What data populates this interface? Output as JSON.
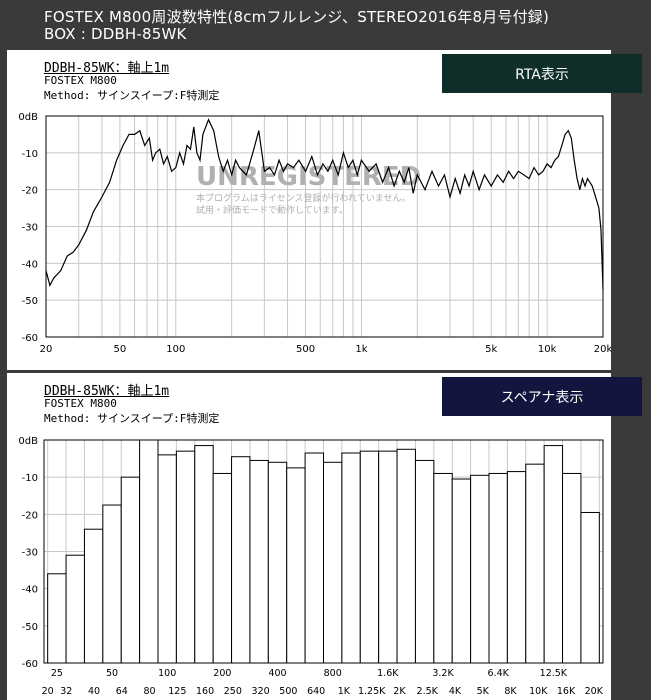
{
  "header": {
    "title": "FOSTEX M800周波数特性(8cmフルレンジ、STEREO2016年8月号付録)",
    "subtitle": "BOX : DDBH-85WK"
  },
  "watermark": {
    "title": "UNREGISTERED",
    "line1": "本プログラムはライセンス登録が行われていません。",
    "line2": "試用・評価モードで動作しています。"
  },
  "panel1": {
    "title": "DDBH-85WK：軸上1m",
    "line1": "FOSTEX M800",
    "line2": "Method: サインスイープ:F特測定",
    "button_label": "RTA表示"
  },
  "panel2": {
    "title": "DDBH-85WK：軸上1m",
    "line1": "FOSTEX M800",
    "line2": "Method: サインスイープ:F特測定",
    "button_label": "スペアナ表示"
  },
  "colors": {
    "background": "#3a3a3a",
    "rta_button": "#0f2e2a",
    "spectrum_button": "#12163f",
    "grid": "#c8c8c8",
    "watermark": "#b0b0b0"
  },
  "chart_data": [
    {
      "type": "line",
      "title": "",
      "xlabel": "",
      "ylabel": "",
      "x_scale": "log",
      "xlim": [
        20,
        20000
      ],
      "ylim": [
        -60,
        0
      ],
      "grid": true,
      "y_ticks": [
        "0dB",
        "-10",
        "-20",
        "-30",
        "-40",
        "-50",
        "-60"
      ],
      "x_ticks": [
        {
          "v": 20,
          "label": "20"
        },
        {
          "v": 50,
          "label": "50"
        },
        {
          "v": 100,
          "label": "100"
        },
        {
          "v": 500,
          "label": "500"
        },
        {
          "v": 1000,
          "label": "1k"
        },
        {
          "v": 5000,
          "label": "5k"
        },
        {
          "v": 10000,
          "label": "10k"
        },
        {
          "v": 20000,
          "label": "20k"
        }
      ],
      "series": [
        {
          "x": [
            20,
            21,
            22,
            24,
            26,
            28,
            30,
            33,
            36,
            40,
            44,
            48,
            52,
            56,
            60,
            64,
            68,
            72,
            75,
            78,
            82,
            86,
            90,
            95,
            100,
            105,
            110,
            115,
            120,
            125,
            130,
            135,
            140,
            150,
            160,
            170,
            180,
            190,
            200,
            210,
            220,
            240,
            260,
            280,
            300,
            320,
            340,
            360,
            380,
            400,
            430,
            460,
            500,
            540,
            580,
            620,
            660,
            700,
            750,
            800,
            850,
            900,
            950,
            1000,
            1100,
            1200,
            1300,
            1400,
            1500,
            1600,
            1700,
            1800,
            1900,
            2000,
            2200,
            2400,
            2600,
            2800,
            3000,
            3200,
            3400,
            3600,
            3800,
            4000,
            4300,
            4600,
            5000,
            5400,
            5800,
            6200,
            6600,
            7000,
            7500,
            8000,
            8500,
            9000,
            9500,
            10000,
            10500,
            11000,
            11500,
            12000,
            12500,
            13000,
            13500,
            14000,
            14500,
            15000,
            15500,
            16000,
            16500,
            17000,
            17500,
            18000,
            18500,
            19000,
            19500,
            20000
          ],
          "y": [
            -42,
            -46,
            -44,
            -42,
            -38,
            -37,
            -35,
            -31,
            -26,
            -22,
            -18,
            -12,
            -8,
            -5,
            -5,
            -4,
            -8,
            -6,
            -12,
            -10,
            -9,
            -13,
            -11,
            -15,
            -14,
            -10,
            -13,
            -8,
            -9,
            -3,
            -10,
            -12,
            -5,
            -1,
            -4,
            -11,
            -15,
            -12,
            -16,
            -12,
            -14,
            -16,
            -10,
            -4,
            -15,
            -14,
            -16,
            -12,
            -15,
            -13,
            -14,
            -12,
            -15,
            -11,
            -16,
            -13,
            -15,
            -12,
            -16,
            -10,
            -14,
            -12,
            -16,
            -12,
            -15,
            -13,
            -18,
            -14,
            -19,
            -15,
            -18,
            -14,
            -21,
            -16,
            -20,
            -15,
            -19,
            -16,
            -22,
            -17,
            -21,
            -16,
            -19,
            -15,
            -20,
            -16,
            -19,
            -16,
            -18,
            -15,
            -17,
            -15,
            -16,
            -17,
            -14,
            -16,
            -15,
            -13,
            -14,
            -12,
            -11,
            -8,
            -5,
            -4,
            -6,
            -12,
            -17,
            -20,
            -17,
            -19,
            -17,
            -18,
            -19,
            -21,
            -23,
            -25,
            -31,
            -47
          ]
        }
      ]
    },
    {
      "type": "bar",
      "title": "",
      "xlabel": "",
      "ylabel": "",
      "ylim": [
        -60,
        0
      ],
      "grid": true,
      "y_ticks": [
        "0dB",
        "-10",
        "-20",
        "-30",
        "-40",
        "-50",
        "-60"
      ],
      "band_labels_upper": [
        "25",
        "50",
        "100",
        "200",
        "400",
        "800",
        "1.6K",
        "3.2K",
        "6.4K",
        "12.5K"
      ],
      "band_labels_lower": [
        "20",
        "32",
        "40",
        "64",
        "80",
        "125",
        "160",
        "250",
        "320",
        "500",
        "640",
        "1K",
        "1.25K",
        "2K",
        "2.5K",
        "4K",
        "5K",
        "8K",
        "10K",
        "16K",
        "20K"
      ],
      "categories": [
        "25",
        "31.5",
        "40",
        "50",
        "63",
        "80",
        "100",
        "125",
        "160",
        "200",
        "250",
        "315",
        "400",
        "500",
        "630",
        "800",
        "1K",
        "1.25K",
        "1.6K",
        "2K",
        "2.5K",
        "3.15K",
        "4K",
        "5K",
        "6.3K",
        "8K",
        "10K",
        "12.5K",
        "16K",
        "20K"
      ],
      "values": [
        -36,
        -31,
        -24,
        -17.5,
        -10,
        0,
        -4,
        -3,
        -1.5,
        -9,
        -4.5,
        -5.5,
        -6,
        -7.5,
        -3.5,
        -6,
        -3.5,
        -3,
        -3,
        -2.5,
        -5.5,
        -9,
        -10.5,
        -9.5,
        -9,
        -8.5,
        -6.5,
        -1.5,
        -9,
        -19.5
      ]
    }
  ]
}
